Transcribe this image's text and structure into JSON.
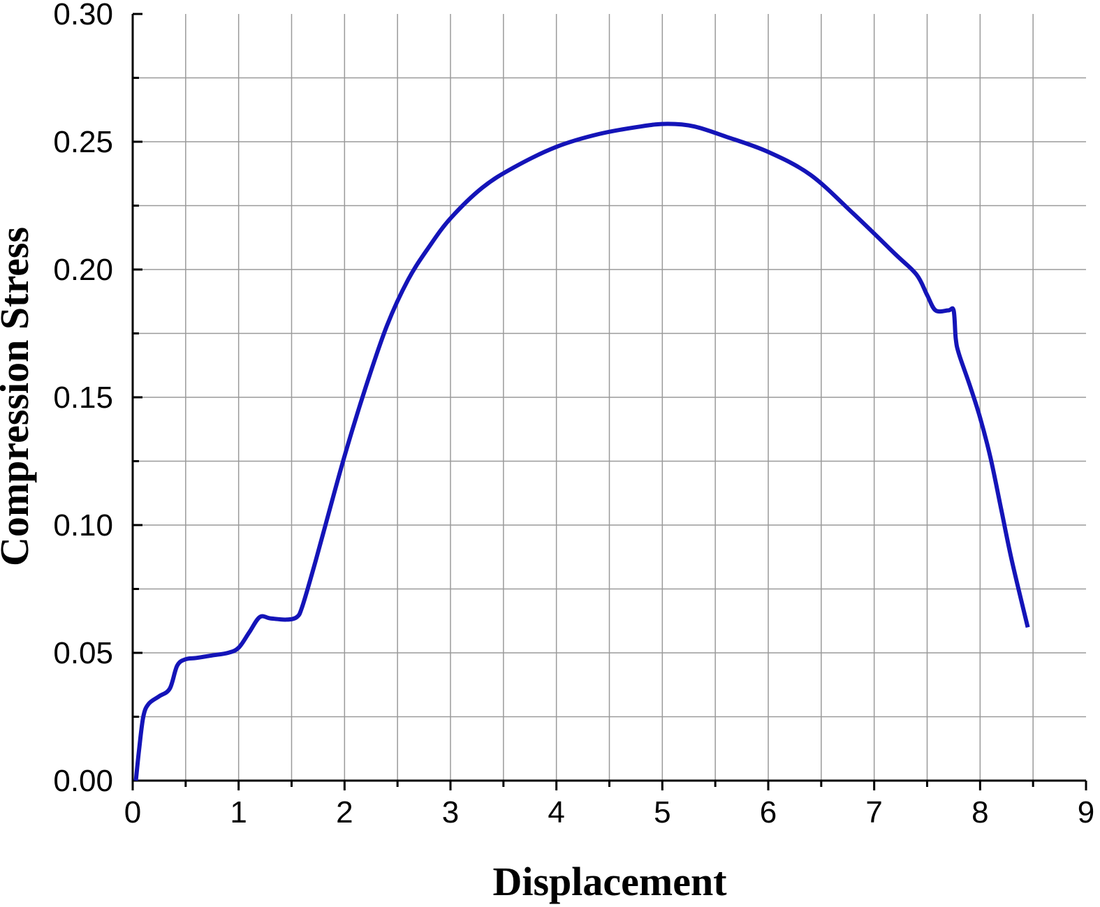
{
  "colors": {
    "series": "#1414b8",
    "grid": "#9a9a9a",
    "axis": "#000000",
    "background": "#ffffff"
  },
  "chart_data": {
    "type": "line",
    "title": "",
    "xlabel": "Displacement",
    "ylabel": "Compression Stress",
    "xlim": [
      0,
      9
    ],
    "ylim": [
      0,
      0.3
    ],
    "x_ticks": [
      0,
      1,
      2,
      3,
      4,
      5,
      6,
      7,
      8,
      9
    ],
    "x_tick_labels": [
      "0",
      "1",
      "2",
      "3",
      "4",
      "5",
      "6",
      "7",
      "8",
      "9"
    ],
    "x_minor_step": 0.5,
    "y_ticks": [
      0,
      0.05,
      0.1,
      0.15,
      0.2,
      0.25,
      0.3
    ],
    "y_tick_labels": [
      "0.00",
      "0.05",
      "0.10",
      "0.15",
      "0.20",
      "0.25",
      "0.30"
    ],
    "y_minor_step": 0.025,
    "grid": true,
    "legend": "none",
    "series": [
      {
        "x": [
          0.03,
          0.06,
          0.1,
          0.15,
          0.25,
          0.35,
          0.42,
          0.5,
          0.6,
          0.75,
          0.9,
          1.0,
          1.1,
          1.2,
          1.3,
          1.45,
          1.55,
          1.6,
          1.7,
          1.8,
          2.0,
          2.2,
          2.4,
          2.6,
          2.8,
          3.0,
          3.3,
          3.6,
          4.0,
          4.4,
          4.8,
          5.05,
          5.3,
          5.6,
          6.0,
          6.4,
          6.8,
          7.2,
          7.4,
          7.5,
          7.58,
          7.7,
          7.75,
          7.77,
          7.8,
          7.9,
          8.0,
          8.1,
          8.2,
          8.3,
          8.45
        ],
        "y": [
          0.0,
          0.012,
          0.025,
          0.03,
          0.033,
          0.036,
          0.045,
          0.0475,
          0.048,
          0.049,
          0.05,
          0.052,
          0.058,
          0.064,
          0.0635,
          0.063,
          0.064,
          0.068,
          0.082,
          0.097,
          0.127,
          0.154,
          0.178,
          0.196,
          0.209,
          0.22,
          0.232,
          0.24,
          0.248,
          0.253,
          0.256,
          0.257,
          0.256,
          0.252,
          0.246,
          0.237,
          0.222,
          0.206,
          0.198,
          0.19,
          0.184,
          0.184,
          0.184,
          0.173,
          0.167,
          0.155,
          0.142,
          0.126,
          0.106,
          0.086,
          0.06
        ]
      }
    ]
  }
}
